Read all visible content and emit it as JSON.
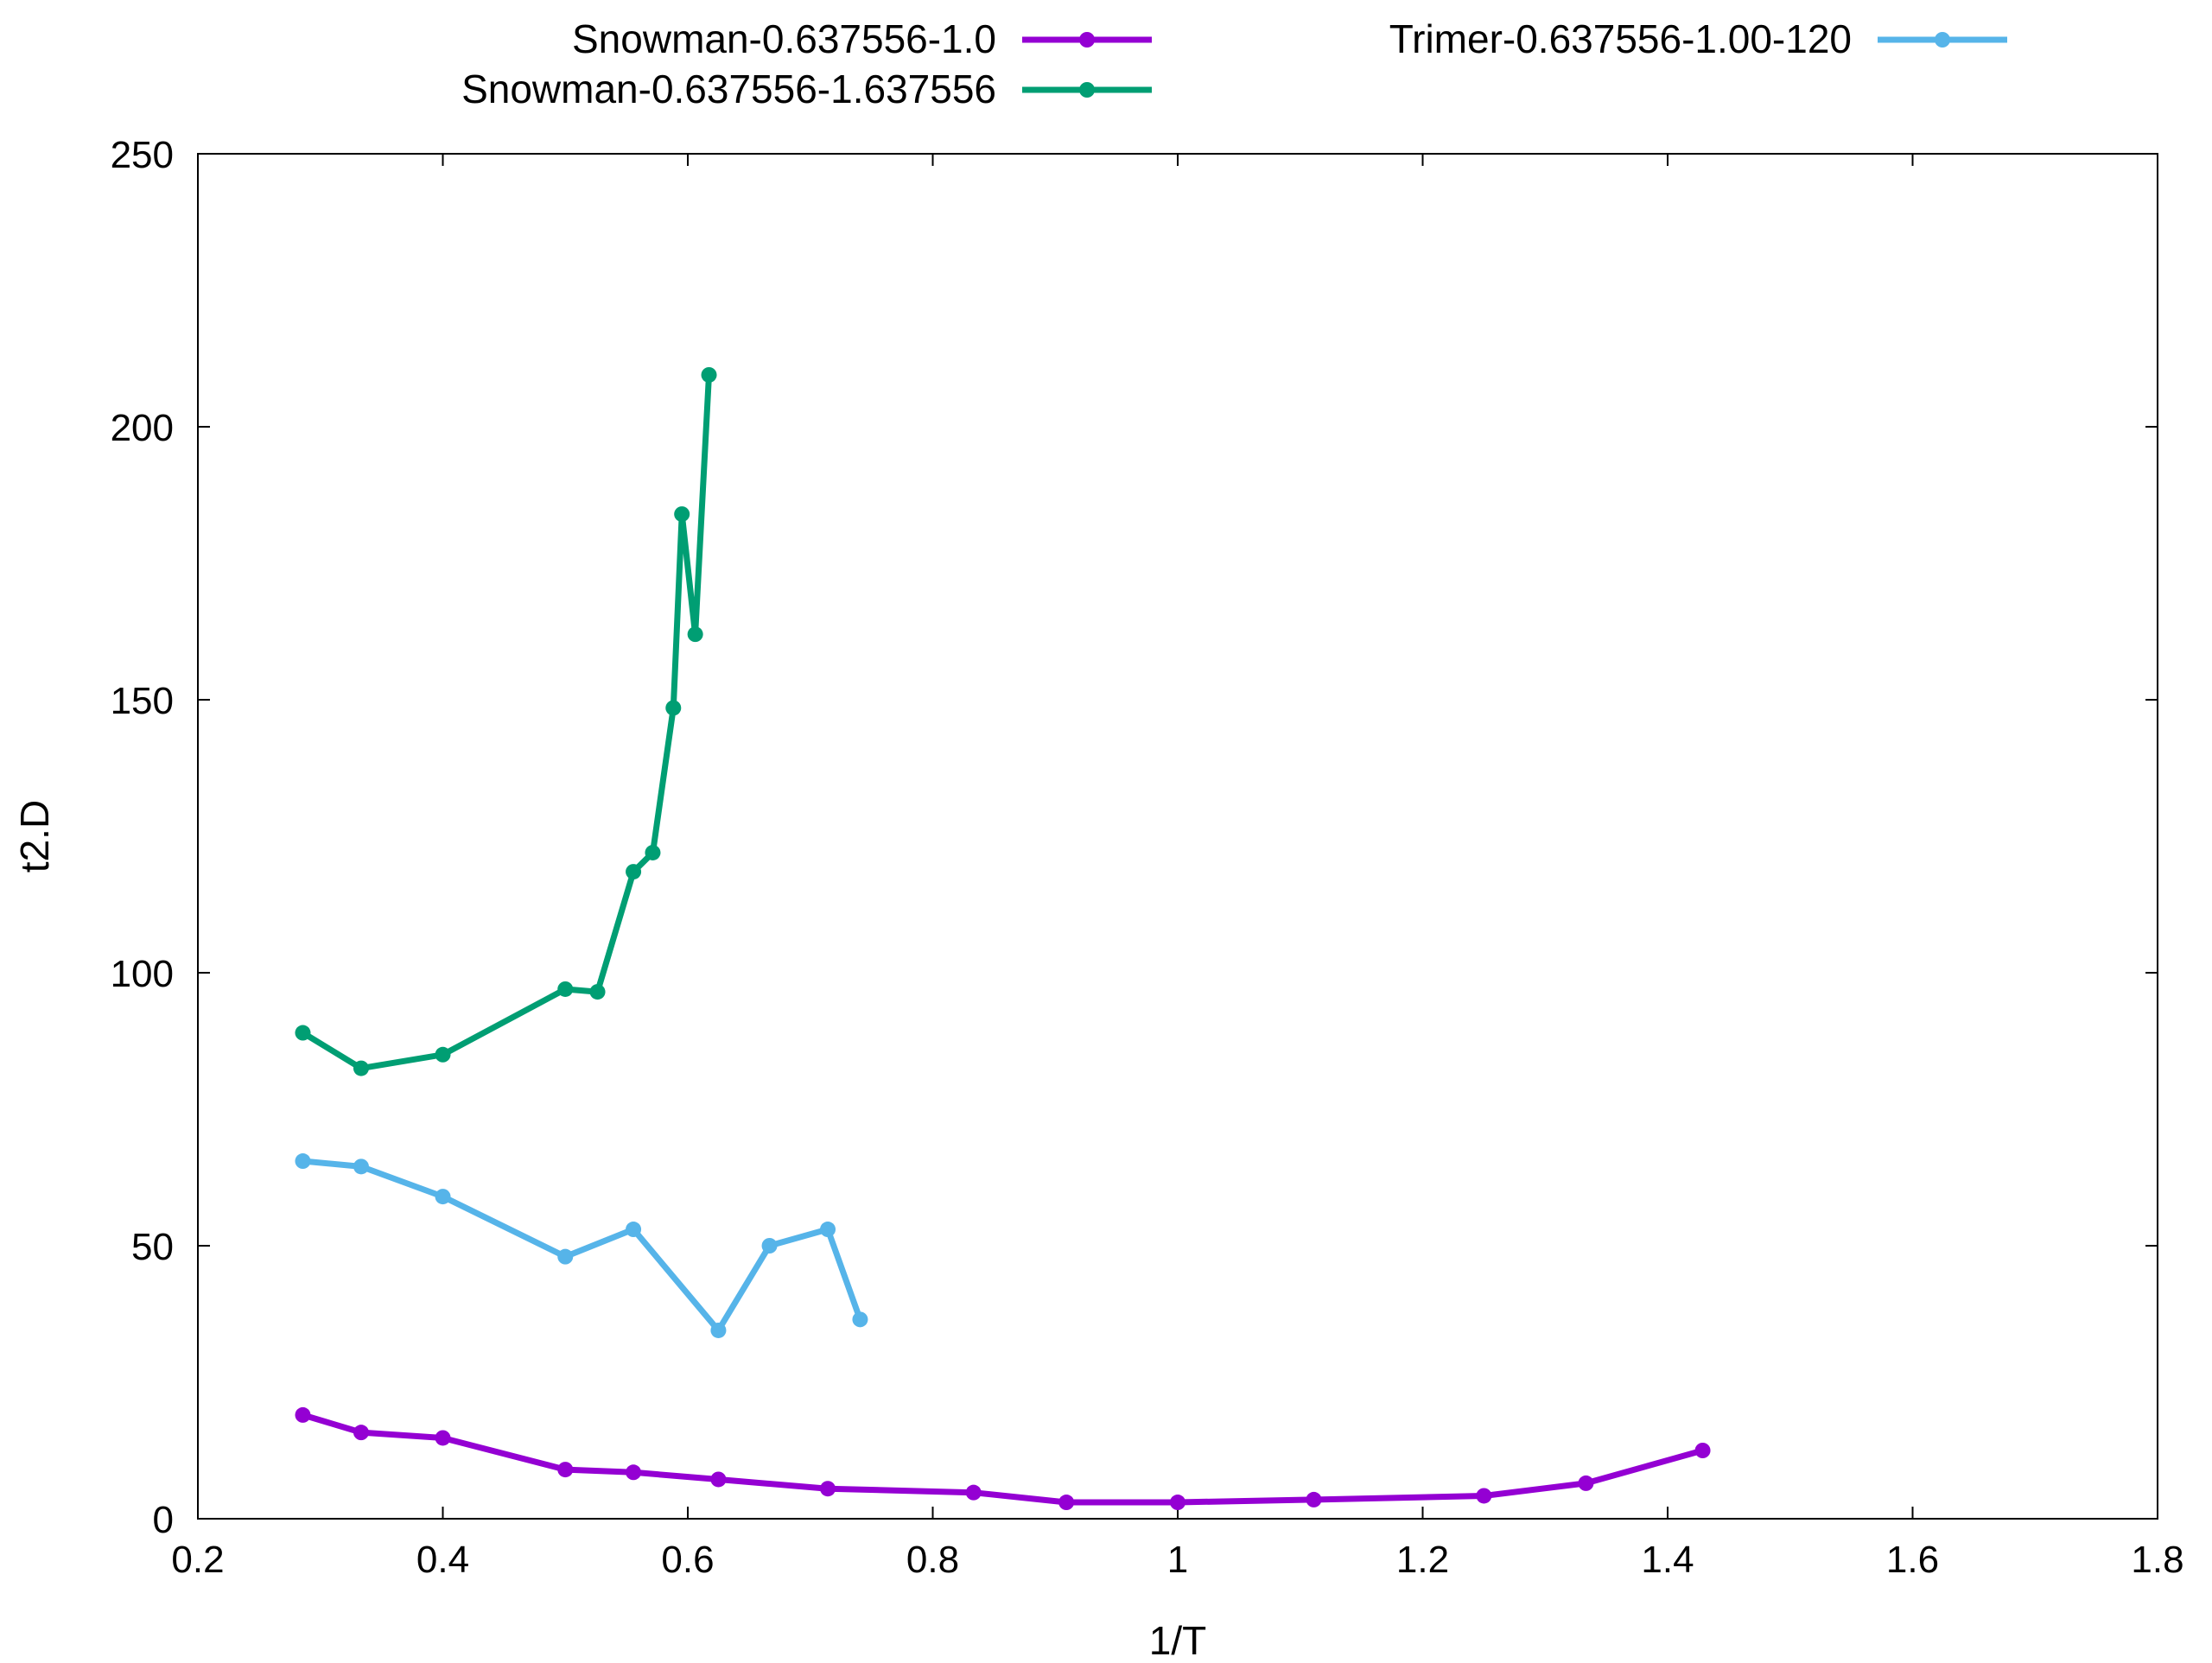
{
  "chart_data": {
    "type": "line",
    "xlabel": "1/T",
    "ylabel": "t2.D",
    "xlim": [
      0.2,
      1.8
    ],
    "ylim": [
      0,
      250
    ],
    "xticks": [
      "0.2",
      "0.4",
      "0.6",
      "0.8",
      "1",
      "1.2",
      "1.4",
      "1.6",
      "1.8"
    ],
    "yticks": [
      "0",
      "50",
      "100",
      "150",
      "200",
      "250"
    ],
    "legend_position": "top",
    "grid": false,
    "series": [
      {
        "name": "Snowman-0.637556-1.0",
        "color": "#9400d3",
        "x": [
          0.2857,
          0.3333,
          0.4,
          0.5,
          0.5556,
          0.625,
          0.7143,
          0.8333,
          0.9091,
          1.0,
          1.1111,
          1.25,
          1.3333,
          1.4286
        ],
        "y": [
          19,
          15.8,
          14.8,
          9,
          8.5,
          7.2,
          5.5,
          4.8,
          3,
          3,
          3.5,
          4.2,
          6.5,
          12.5
        ]
      },
      {
        "name": "Snowman-0.637556-1.637556",
        "color": "#009e73",
        "x": [
          0.2857,
          0.3333,
          0.4,
          0.5,
          0.5263,
          0.5556,
          0.5714,
          0.5882,
          0.5952,
          0.6061,
          0.6173
        ],
        "y": [
          89,
          82.5,
          85,
          97,
          96.5,
          118.5,
          122,
          148.5,
          184,
          162,
          209.5
        ]
      },
      {
        "name": "Trimer-0.637556-1.00-120",
        "color": "#56b4e9",
        "x": [
          0.2857,
          0.3333,
          0.4,
          0.5,
          0.5556,
          0.625,
          0.6667,
          0.7143,
          0.7407
        ],
        "y": [
          65.5,
          64.5,
          59,
          48,
          53,
          34.5,
          50,
          53,
          36.5
        ]
      }
    ]
  }
}
